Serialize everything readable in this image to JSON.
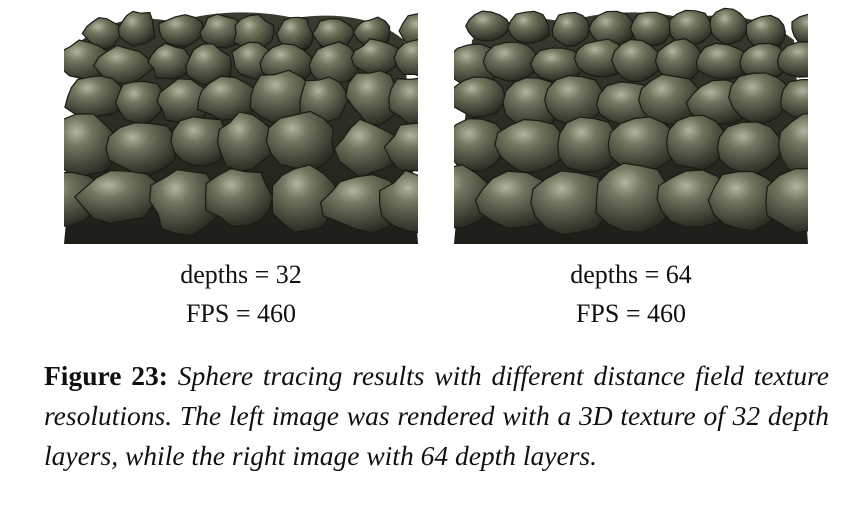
{
  "panels": [
    {
      "depth_label": "depths = 32",
      "fps_label": "FPS = 460",
      "image_description": "3D render of dark olive scale-like bumps (lower resolution distance field)"
    },
    {
      "depth_label": "depths = 64",
      "fps_label": "FPS = 460",
      "image_description": "3D render of dark olive scale-like bumps (higher resolution distance field)"
    }
  ],
  "caption": {
    "label": "Figure 23:",
    "text": "Sphere tracing results with different distance field texture resolutions. The left image was rendered with a 3D texture of 32 depth layers, while the right image with 64 depth layers."
  },
  "colors": {
    "scale_dark": "#2d2f25",
    "scale_mid": "#5a5c4a",
    "scale_light": "#9a9c88"
  }
}
